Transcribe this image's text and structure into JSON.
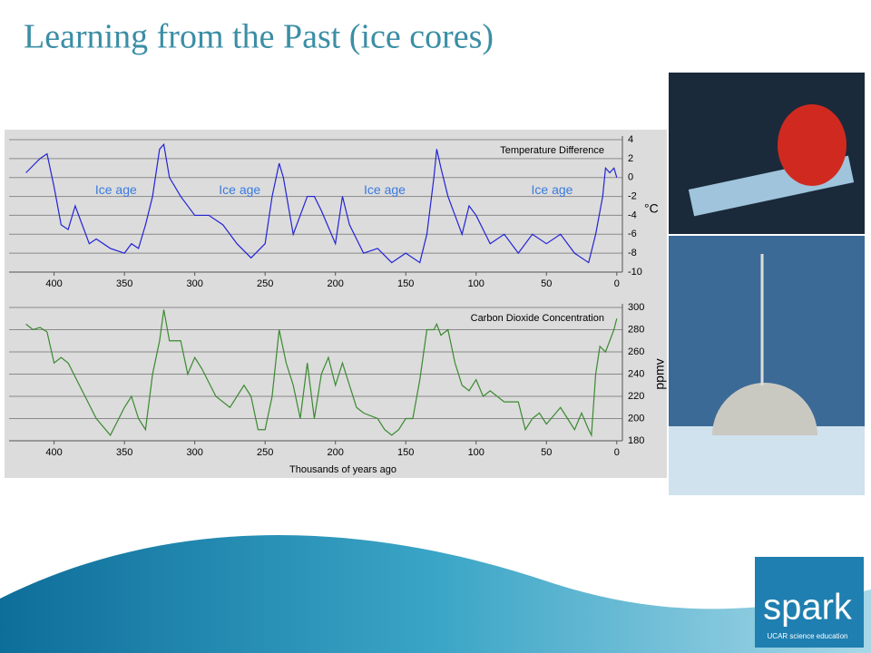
{
  "title": "Learning from the Past (ice cores)",
  "logo": {
    "name": "spark",
    "tagline": "UCAR science education"
  },
  "chart_data": [
    {
      "type": "line",
      "title": "Temperature Difference",
      "ylabel": "°C",
      "xlim": [
        432,
        -4
      ],
      "xticks": [
        400,
        350,
        300,
        250,
        200,
        150,
        100,
        50,
        0
      ],
      "ylim": [
        -10,
        4
      ],
      "yticks": [
        -10,
        -8,
        -6,
        -4,
        -2,
        0,
        2,
        4
      ],
      "grid": true,
      "x": [
        420,
        410,
        405,
        400,
        395,
        390,
        385,
        380,
        375,
        370,
        360,
        350,
        345,
        340,
        335,
        330,
        325,
        322,
        318,
        310,
        300,
        290,
        280,
        270,
        260,
        250,
        245,
        240,
        237,
        230,
        220,
        215,
        210,
        200,
        195,
        190,
        180,
        170,
        160,
        150,
        140,
        135,
        130,
        128,
        125,
        120,
        115,
        110,
        105,
        100,
        90,
        80,
        70,
        60,
        50,
        40,
        30,
        20,
        15,
        10,
        8,
        5,
        2,
        0
      ],
      "series": [
        {
          "name": "Temperature Difference",
          "color": "#2323d6",
          "values": [
            0.5,
            2,
            2.5,
            -1,
            -5,
            -5.5,
            -3,
            -5,
            -7,
            -6.5,
            -7.5,
            -8,
            -7,
            -7.5,
            -5,
            -2,
            3,
            3.5,
            0,
            -2,
            -4,
            -4,
            -5,
            -7,
            -8.5,
            -7,
            -2,
            1.5,
            0,
            -6,
            -2,
            -2,
            -3.5,
            -7,
            -2,
            -5,
            -8,
            -7.5,
            -9,
            -8,
            -9,
            -6,
            0,
            3,
            1,
            -2,
            -4,
            -6,
            -3,
            -4,
            -7,
            -6,
            -8,
            -6,
            -7,
            -6,
            -8,
            -9,
            -6,
            -2,
            1,
            0.5,
            1,
            0
          ]
        }
      ],
      "annotations": [
        {
          "text": "Ice age",
          "x": 356,
          "y": -1.4
        },
        {
          "text": "Ice age",
          "x": 268,
          "y": -1.4
        },
        {
          "text": "Ice age",
          "x": 165,
          "y": -1.4
        },
        {
          "text": "Ice age",
          "x": 46,
          "y": -1.4
        }
      ]
    },
    {
      "type": "line",
      "title": "Carbon Dioxide Concentration",
      "ylabel": "ppmv",
      "xlabel": "Thousands of years ago",
      "xlim": [
        432,
        -4
      ],
      "xticks": [
        400,
        350,
        300,
        250,
        200,
        150,
        100,
        50,
        0
      ],
      "ylim": [
        180,
        300
      ],
      "yticks": [
        180,
        200,
        220,
        240,
        260,
        280,
        300
      ],
      "grid": true,
      "x": [
        420,
        415,
        410,
        405,
        400,
        395,
        390,
        380,
        370,
        360,
        350,
        345,
        340,
        335,
        330,
        325,
        322,
        318,
        310,
        305,
        300,
        295,
        285,
        275,
        265,
        260,
        255,
        250,
        245,
        240,
        235,
        230,
        225,
        220,
        215,
        210,
        205,
        200,
        195,
        185,
        180,
        170,
        165,
        160,
        155,
        150,
        145,
        140,
        135,
        130,
        128,
        125,
        120,
        115,
        110,
        105,
        100,
        95,
        90,
        80,
        70,
        65,
        60,
        55,
        50,
        40,
        35,
        30,
        25,
        20,
        18,
        15,
        12,
        8,
        5,
        2,
        0
      ],
      "series": [
        {
          "name": "Carbon Dioxide Concentration",
          "color": "#3a8a30",
          "values": [
            285,
            280,
            282,
            278,
            250,
            255,
            250,
            225,
            200,
            185,
            210,
            220,
            200,
            190,
            240,
            270,
            298,
            270,
            270,
            240,
            255,
            245,
            220,
            210,
            230,
            220,
            190,
            190,
            220,
            280,
            250,
            230,
            200,
            250,
            200,
            240,
            255,
            230,
            250,
            210,
            205,
            200,
            190,
            185,
            190,
            200,
            200,
            235,
            280,
            280,
            285,
            275,
            280,
            250,
            230,
            225,
            235,
            220,
            225,
            215,
            215,
            190,
            200,
            205,
            195,
            210,
            200,
            190,
            205,
            190,
            185,
            240,
            265,
            260,
            270,
            280,
            290
          ]
        }
      ]
    }
  ]
}
